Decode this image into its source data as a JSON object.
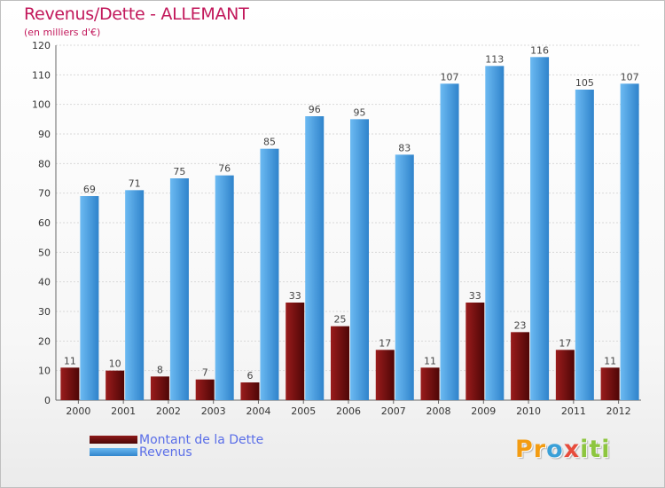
{
  "chart_data": {
    "type": "bar",
    "title": "Revenus/Dette - ALLEMANT",
    "subtitle": "(en milliers d'€)",
    "categories": [
      "2000",
      "2001",
      "2002",
      "2003",
      "2004",
      "2005",
      "2006",
      "2007",
      "2008",
      "2009",
      "2010",
      "2011",
      "2012"
    ],
    "series": [
      {
        "name": "Montant de la Dette",
        "color": "#6b0a0a",
        "values": [
          11,
          10,
          8,
          7,
          6,
          33,
          25,
          17,
          11,
          33,
          23,
          17,
          11
        ]
      },
      {
        "name": "Revenus",
        "color": "#4a9de0",
        "values": [
          69,
          71,
          75,
          76,
          85,
          96,
          95,
          83,
          107,
          113,
          116,
          105,
          107
        ]
      }
    ],
    "ylim": [
      0,
      120
    ],
    "yticks": [
      0,
      10,
      20,
      30,
      40,
      50,
      60,
      70,
      80,
      90,
      100,
      110,
      120
    ],
    "grid": true,
    "legend": "bottom-left"
  },
  "branding": {
    "logo_letters": [
      "P",
      "r",
      "o",
      "x",
      "i",
      "t",
      "i"
    ],
    "logo_colors": [
      "#f39c12",
      "#f39c12",
      "#3aa0d8",
      "#e74c3c",
      "#8dc63f",
      "#8dc63f",
      "#8dc63f"
    ]
  }
}
